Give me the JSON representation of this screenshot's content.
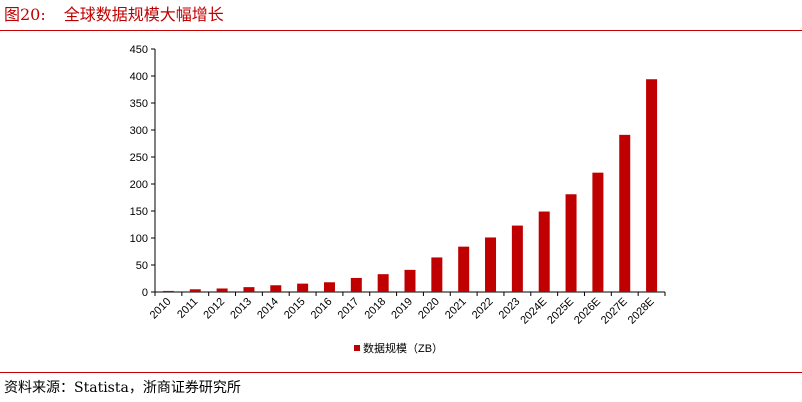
{
  "figure": {
    "number": "图20:",
    "title": "全球数据规模大幅增长"
  },
  "source": "资料来源：Statista，浙商证券研究所",
  "colors": {
    "accent": "#c00000",
    "bar": "#c00000"
  },
  "chart_data": {
    "type": "bar",
    "categories": [
      "2010",
      "2011",
      "2012",
      "2013",
      "2014",
      "2015",
      "2016",
      "2017",
      "2018",
      "2019",
      "2020",
      "2021",
      "2022",
      "2023",
      "2024E",
      "2025E",
      "2026E",
      "2027E",
      "2028E"
    ],
    "series": [
      {
        "name": "数据规模（ZB）",
        "values": [
          2,
          5,
          6.5,
          9,
          12.5,
          15.5,
          18,
          26,
          33,
          41,
          64,
          84,
          101,
          123,
          149,
          181,
          221,
          291,
          394
        ]
      }
    ],
    "yticks": [
      0,
      50,
      100,
      150,
      200,
      250,
      300,
      350,
      400,
      450
    ],
    "ylim": [
      0,
      450
    ],
    "grid": false,
    "legend_position": "bottom-center",
    "title": "",
    "xlabel": "",
    "ylabel": ""
  }
}
